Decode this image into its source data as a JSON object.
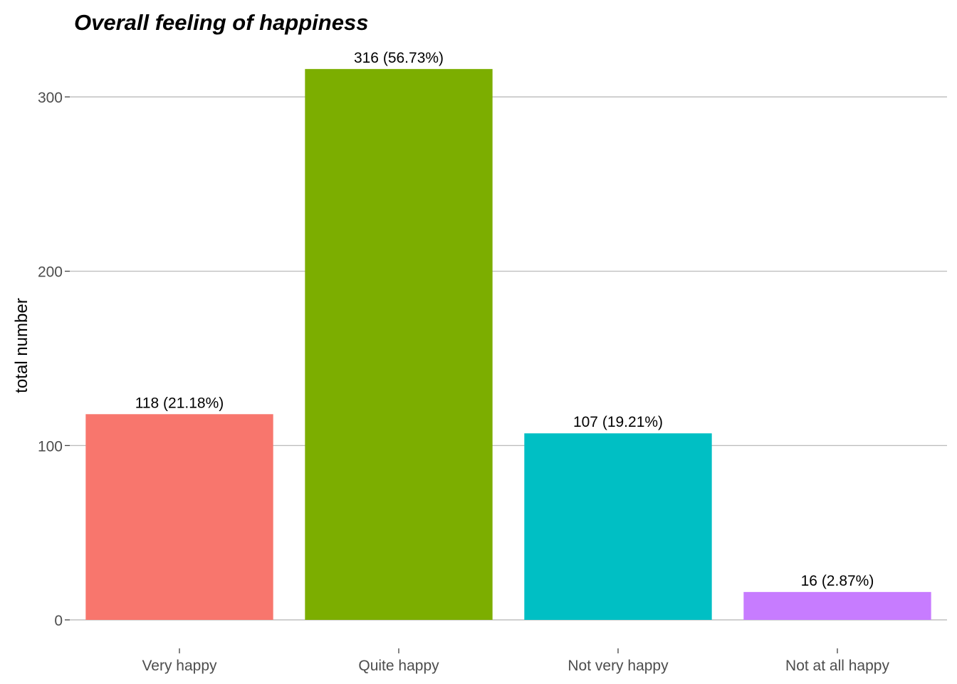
{
  "chart_data": {
    "type": "bar",
    "title": "Overall feeling of happiness",
    "xlabel": "",
    "ylabel": "total number",
    "categories": [
      "Very happy",
      "Quite happy",
      "Not very happy",
      "Not at all happy"
    ],
    "values": [
      118,
      316,
      107,
      16
    ],
    "data_labels": [
      "118 (21.18%)",
      "316 (56.73%)",
      "107 (19.21%)",
      "16 (2.87%)"
    ],
    "colors": [
      "#F8766D",
      "#7CAE00",
      "#00BFC4",
      "#C77CFF"
    ],
    "ylim": [
      0,
      325
    ],
    "yticks": [
      0,
      100,
      200,
      300
    ],
    "grid": true,
    "legend": "none"
  }
}
